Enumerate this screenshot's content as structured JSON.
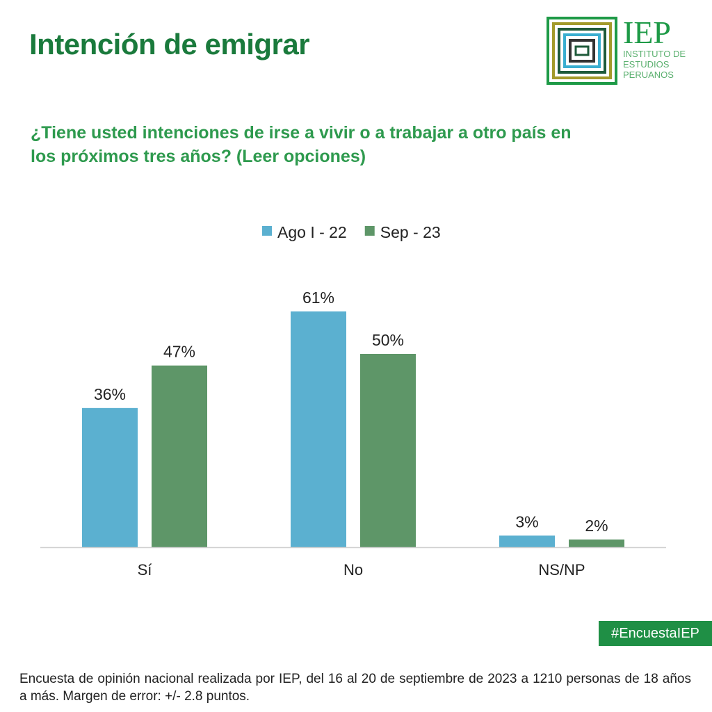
{
  "header": {
    "title": "Intención de emigrar",
    "question": "¿Tiene usted intenciones de irse a vivir o a trabajar a otro país en los próximos tres años? (Leer opciones)"
  },
  "logo": {
    "acronym": "IEP",
    "name_lines": [
      "INSTITUTO DE",
      "ESTUDIOS",
      "PERUANOS"
    ]
  },
  "chart_data": {
    "type": "bar",
    "categories": [
      "Sí",
      "No",
      "NS/NP"
    ],
    "series": [
      {
        "name": "Ago I - 22",
        "values": [
          36,
          61,
          3
        ],
        "labels": [
          "36%",
          "61%",
          "3%"
        ],
        "color": "#5bb0d0"
      },
      {
        "name": "Sep - 23",
        "values": [
          47,
          50,
          2
        ],
        "labels": [
          "47%",
          "50%",
          "2%"
        ],
        "color": "#5e9668"
      }
    ],
    "unit": "%",
    "legend": "top",
    "grid": false
  },
  "hashtag": "#EncuestaIEP",
  "footer": "Encuesta de opinión nacional realizada por IEP, del 16 al 20 de septiembre de 2023 a 1210 personas de 18 años a más. Margen de error: +/- 2.8 puntos."
}
